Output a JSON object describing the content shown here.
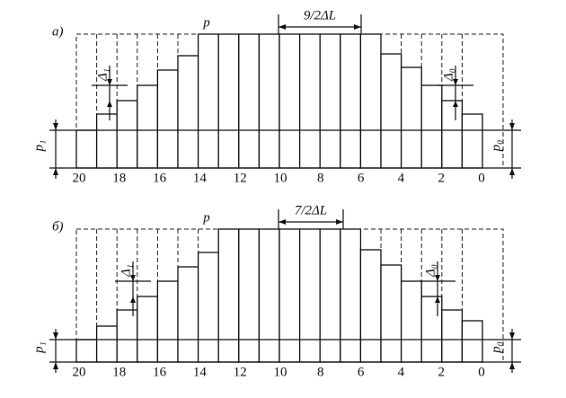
{
  "panels": [
    {
      "label": "а)",
      "p": "p",
      "span": "9/2ΔL",
      "delta_left": "Δ₁",
      "delta_right": "Δ₀",
      "p_left": "p₁",
      "p_right": "p₀",
      "axis_labels": [
        "20",
        "18",
        "16",
        "14",
        "12",
        "10",
        "8",
        "6",
        "4",
        "2",
        "0"
      ]
    },
    {
      "label": "б)",
      "p": "p",
      "span": "7/2ΔL",
      "delta_left": "Δ₁",
      "delta_right": "Δ₀",
      "p_left": "p₁",
      "p_right": "p₀",
      "axis_labels": [
        "20",
        "18",
        "16",
        "14",
        "12",
        "10",
        "8",
        "6",
        "4",
        "2",
        "0"
      ]
    }
  ]
}
